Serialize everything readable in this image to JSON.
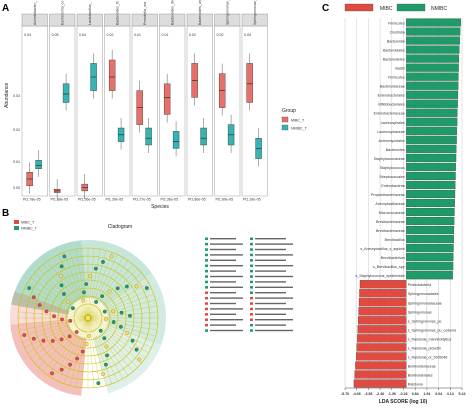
{
  "panels": {
    "a": "A",
    "b": "B",
    "c": "C"
  },
  "colors": {
    "mibc": "#e04a40",
    "nmibc": "#1f9b6a",
    "nmibc_box": "#36b3b3",
    "mibc_box": "#e8706a"
  },
  "panel_a": {
    "xlabel": "Species",
    "ylabel": "Abundance",
    "legend_title": "Group",
    "legend_items": [
      "MIBC_T",
      "NMIBC_T"
    ],
    "facets": [
      {
        "title": "Acinetobacter_johnsonii",
        "ytick_top": "0.04",
        "xlab": "Pt1.78e-05"
      },
      {
        "title": "Escherichia_coli_sp_ex_t",
        "ytick_top": "0.05",
        "xlab": "Pt1.38e-05"
      },
      {
        "title": "Lactobacillus_spp",
        "ytick_top": "0.04",
        "xlab": "Pt1.56e-05"
      },
      {
        "title": "Bacteroides_thetaiotaomicron",
        "ytick_top": "0.02",
        "xlab": "Pt1.39e-05"
      },
      {
        "title": "Prevotella_oralis",
        "ytick_top": "0.01",
        "xlab": "Pt1.27e-05"
      },
      {
        "title": "Bacteroides_dorei",
        "ytick_top": "0.01",
        "xlab": "Pt1.36e-05"
      },
      {
        "title": "Bacteroides_uniformis",
        "ytick_top": "0.02",
        "xlab": "Pt1.86e-05"
      },
      {
        "title": "Sphingomonas_paucimobilis",
        "ytick_top": "0.02",
        "xlab": "Pt1.89e-05"
      },
      {
        "title": "Sphingomonas_yanoikuyae",
        "ytick_top": "0.04",
        "xlab": "Pt1.28e-05"
      }
    ],
    "ytick_left": [
      "0.03",
      "0.02",
      "0.01",
      "0.00"
    ]
  },
  "panel_b": {
    "title": "Cladogram",
    "legend_items": [
      "MIBC_T",
      "NMIBC_T"
    ]
  },
  "chart_data": {
    "type": "bar",
    "title": "",
    "xlabel": "LDA SCORE (log 10)",
    "ylabel": "",
    "legend": [
      "MIBC",
      "NMIBC"
    ],
    "legend_position": "top",
    "xlim": [
      -5.76,
      5.24
    ],
    "xticks": [
      "-5.76",
      "-4.66",
      "-3.56",
      "-2.46",
      "-1.36",
      "-0.26",
      "0.84",
      "1.94",
      "3.04",
      "4.14",
      "5.24"
    ],
    "grid": true,
    "categories": [
      "Firmicutes_a",
      "Clostridia",
      "Bacteroidia",
      "Bacteroidales",
      "Bacteroidetes",
      "Bacilli",
      "Firmicutes",
      "Bacteroidaceae",
      "Enterobacterales",
      "Bifidobacteriales",
      "Enterobacteriaceae",
      "Lachnospirales",
      "Lachnospiraceae",
      "Actinomycetales",
      "Bacteroides",
      "Staphylococcaceae",
      "Staphylococcus",
      "Streptococcales",
      "Enterobacteria",
      "Propionibacteriaceae",
      "Aneurybacillaceae",
      "Micrococcaceae",
      "Brevibacteriaceae",
      "Brevibacteriaceae_b",
      "Brevibacillus",
      "s_Aneurybacillus_s_aquinis",
      "Brevibacterium",
      "s_Brevibacillus_spp",
      "s_Staphylococcus_epidermidis",
      "Proteobacteria",
      "Sphingomonadales",
      "Sphingomonadaceae",
      "Sphingomonas",
      "s_Sphingomonas_pe",
      "s_Sphingomonas_pu_codenia",
      "s_Ralstonia_mannitolilytica",
      "s_Ralstonia_pickettii",
      "s_Ralstonia_ol_2005048",
      "Burkholderiaceae",
      "Burkholderiales",
      "Ralstonia"
    ],
    "series": [
      {
        "name": "NMIBC",
        "values": [
          5.12,
          5.06,
          5.02,
          4.98,
          4.95,
          4.92,
          4.9,
          4.88,
          4.86,
          4.83,
          4.8,
          4.78,
          4.76,
          4.73,
          4.7,
          4.68,
          4.65,
          4.63,
          4.6,
          4.58,
          4.55,
          4.53,
          4.5,
          4.48,
          4.46,
          4.44,
          4.42,
          4.4,
          4.36,
          null,
          null,
          null,
          null,
          null,
          null,
          null,
          null,
          null,
          null,
          null,
          null
        ]
      },
      {
        "name": "MIBC",
        "values": [
          null,
          null,
          null,
          null,
          null,
          null,
          null,
          null,
          null,
          null,
          null,
          null,
          null,
          null,
          null,
          null,
          null,
          null,
          null,
          null,
          null,
          null,
          null,
          null,
          null,
          null,
          null,
          null,
          null,
          -4.35,
          -4.4,
          -4.44,
          -4.48,
          -4.52,
          -4.56,
          -4.6,
          -4.65,
          -4.7,
          -4.78,
          -4.85,
          -4.92
        ]
      }
    ],
    "category_labels": [
      "Firmicutes",
      "Clostridia",
      "Bacteroidia",
      "Bacteroidales",
      "Bacteroidetes",
      "Bacilli",
      "Firmicutes",
      "Bacteroidaceae",
      "Enterobacterales",
      "Bifidobacteriales",
      "Enterobacteriaceae",
      "Lachnospirales",
      "Lachnospiraceae",
      "Actinomycetales",
      "Bacteroides",
      "Staphylococcaceae",
      "Staphylococcus",
      "Streptococcales",
      "Enterobacteria",
      "Propionibacteriaceae",
      "Aneurybacillaceae",
      "Micrococcaceae",
      "Brevibacteriaceae",
      "Brevibacteriaceae",
      "Brevibacillus",
      "s_Aneurybacillus_s_aquinis",
      "Brevibacterium",
      "s_Brevibacillus_spp",
      "s_Staphylococcus_epidermidis",
      "Proteobacteria",
      "Sphingomonadales",
      "Sphingomonadaceae",
      "Sphingomonas",
      "s_Sphingomonas_pe",
      "s_Sphingomonas_pu_codenia",
      "s_Ralstonia_mannitolilytica",
      "s_Ralstonia_pickettii",
      "s_Ralstonia_ol_2005048",
      "Burkholderiaceae",
      "Burkholderiales",
      "Ralstonia"
    ]
  }
}
